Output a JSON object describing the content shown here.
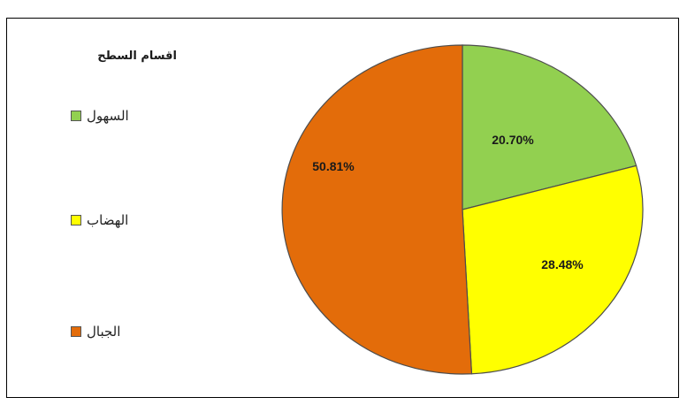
{
  "chart_data": {
    "type": "pie",
    "title": "",
    "legend_title": "اقسام السطح",
    "legend_position": "left",
    "slices": [
      {
        "label": "السهول",
        "value": 20.7,
        "display": "20.70%",
        "color": "#92d050"
      },
      {
        "label": "الهضاب",
        "value": 28.48,
        "display": "28.48%",
        "color": "#ffff00"
      },
      {
        "label": "الجبال",
        "value": 50.81,
        "display": "50.81%",
        "color": "#e36c0a"
      }
    ]
  }
}
